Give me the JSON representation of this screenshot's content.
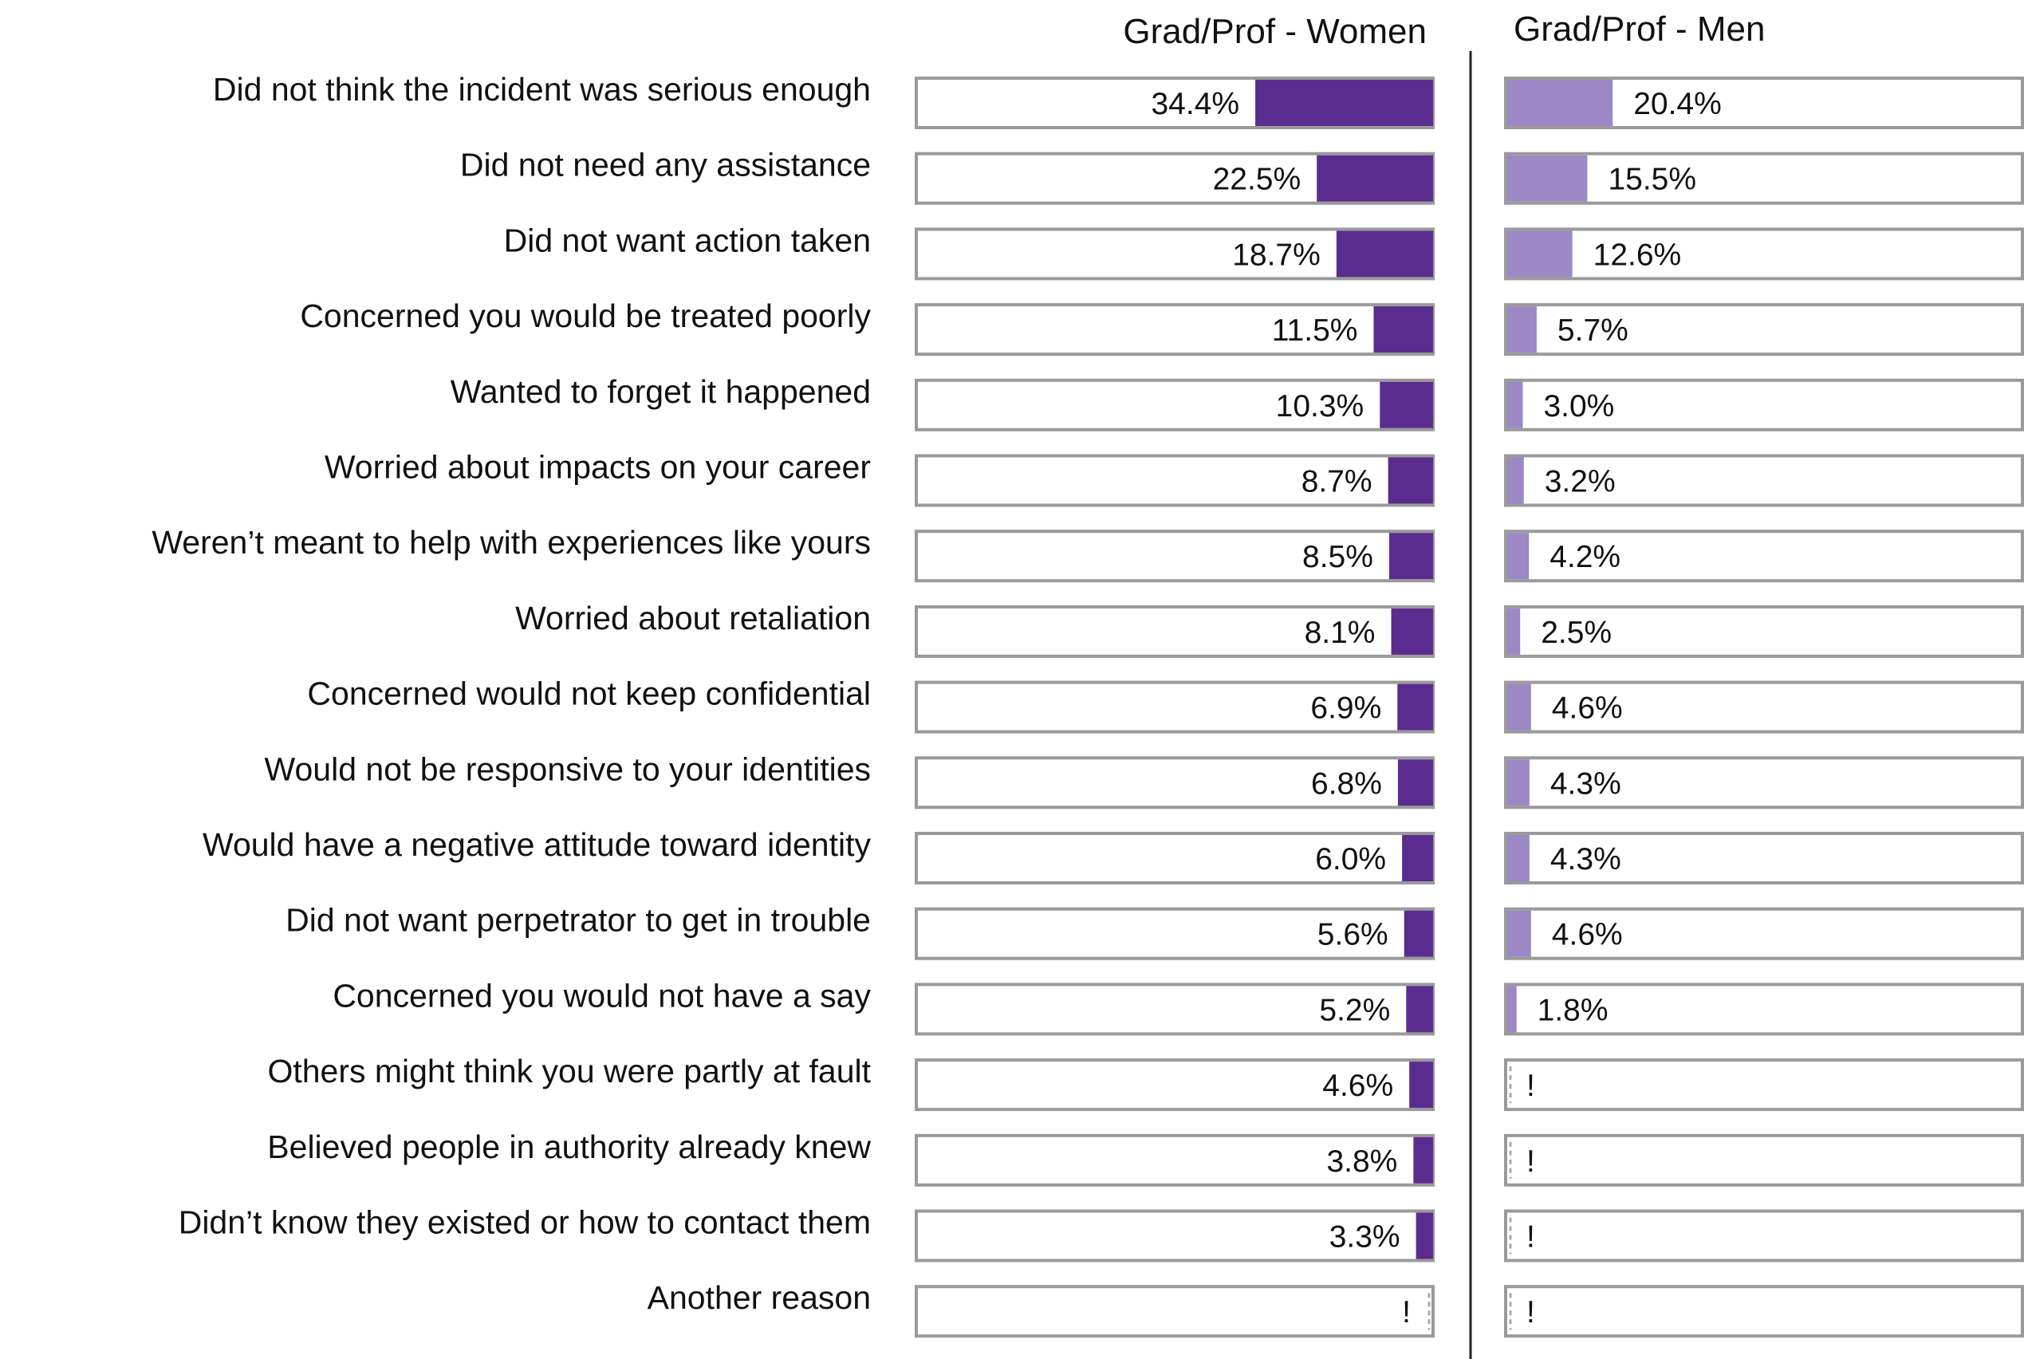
{
  "chart_data": {
    "type": "bar",
    "orientation": "horizontal",
    "categories": [
      "Did not think the incident was serious enough",
      "Did not need any assistance",
      "Did not want action taken",
      "Concerned you would be treated poorly",
      "Wanted to forget it happened",
      "Worried about impacts on your career",
      "Weren’t meant to help with experiences like yours",
      "Worried about retaliation",
      "Concerned would not keep confidential",
      "Would not be responsive to your identities",
      "Would have a negative attitude toward identity",
      "Did not want perpetrator to get in trouble",
      "Concerned you would not have a say",
      "Others might think you were partly at fault",
      "Believed people in authority already knew",
      "Didn’t know they existed or how to contact them",
      "Another  reason"
    ],
    "series": [
      {
        "name": "Grad/Prof - Women",
        "color": "#5b2c8f",
        "direction": "right-to-left",
        "values": [
          34.4,
          22.5,
          18.7,
          11.5,
          10.3,
          8.7,
          8.5,
          8.1,
          6.9,
          6.8,
          6.0,
          5.6,
          5.2,
          4.6,
          3.8,
          3.3,
          null
        ],
        "labels": [
          "34.4%",
          "22.5%",
          "18.7%",
          "11.5%",
          "10.3%",
          "8.7%",
          "8.5%",
          "8.1%",
          "6.9%",
          "6.8%",
          "6.0%",
          "5.6%",
          "5.2%",
          "4.6%",
          "3.8%",
          "3.3%",
          "!"
        ]
      },
      {
        "name": "Grad/Prof - Men",
        "color": "#9b88c4",
        "direction": "left-to-right",
        "values": [
          20.4,
          15.5,
          12.6,
          5.7,
          3.0,
          3.2,
          4.2,
          2.5,
          4.6,
          4.3,
          4.3,
          4.6,
          1.8,
          null,
          null,
          null,
          null
        ],
        "labels": [
          "20.4%",
          "15.5%",
          "12.6%",
          "5.7%",
          "3.0%",
          "3.2%",
          "4.2%",
          "2.5%",
          "4.6%",
          "4.3%",
          "4.3%",
          "4.6%",
          "1.8%",
          "!",
          "!",
          "!",
          "!"
        ]
      }
    ],
    "xlim": [
      0,
      100
    ],
    "grid": false,
    "legend": "none"
  }
}
